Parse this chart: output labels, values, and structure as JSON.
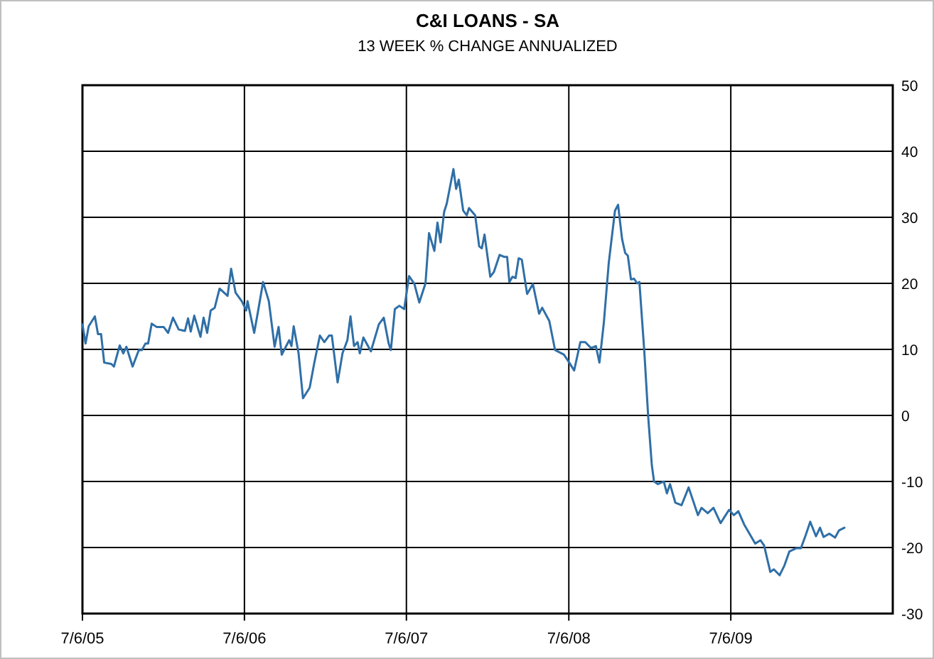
{
  "chart_data": {
    "type": "line",
    "title": "C&I LOANS - SA",
    "subtitle": "13 WEEK % CHANGE ANNUALIZED",
    "x": [
      "2005-07-06",
      "2005-07-13",
      "2005-07-20",
      "2005-08-03",
      "2005-08-10",
      "2005-08-17",
      "2005-08-24",
      "2005-09-09",
      "2005-09-15",
      "2005-09-28",
      "2005-10-06",
      "2005-10-13",
      "2005-10-27",
      "2005-11-10",
      "2005-11-17",
      "2005-11-25",
      "2005-12-01",
      "2005-12-09",
      "2005-12-20",
      "2006-01-05",
      "2006-01-15",
      "2006-01-26",
      "2006-02-08",
      "2006-02-22",
      "2006-03-01",
      "2006-03-07",
      "2006-03-15",
      "2006-03-29",
      "2006-04-05",
      "2006-04-13",
      "2006-04-21",
      "2006-04-30",
      "2006-05-11",
      "2006-05-29",
      "2006-06-06",
      "2006-06-16",
      "2006-06-30",
      "2006-07-10",
      "2006-07-13",
      "2006-07-28",
      "2006-08-06",
      "2006-08-17",
      "2006-08-30",
      "2006-09-12",
      "2006-09-21",
      "2006-09-28",
      "2006-10-15",
      "2006-10-20",
      "2006-10-25",
      "2006-11-05",
      "2006-11-15",
      "2006-11-30",
      "2006-12-10",
      "2006-12-23",
      "2007-01-02",
      "2007-01-13",
      "2007-01-19",
      "2007-02-01",
      "2007-02-12",
      "2007-02-23",
      "2007-03-02",
      "2007-03-10",
      "2007-03-18",
      "2007-03-23",
      "2007-03-31",
      "2007-04-17",
      "2007-05-05",
      "2007-05-16",
      "2007-05-27",
      "2007-06-01",
      "2007-06-10",
      "2007-06-20",
      "2007-07-01",
      "2007-07-12",
      "2007-07-24",
      "2007-08-04",
      "2007-08-18",
      "2007-08-26",
      "2007-09-07",
      "2007-09-14",
      "2007-09-21",
      "2007-09-29",
      "2007-10-05",
      "2007-10-20",
      "2007-10-26",
      "2007-11-01",
      "2007-11-11",
      "2007-11-19",
      "2007-11-24",
      "2007-12-08",
      "2007-12-17",
      "2007-12-23",
      "2007-12-29",
      "2008-01-11",
      "2008-01-19",
      "2008-02-01",
      "2008-02-12",
      "2008-02-18",
      "2008-02-23",
      "2008-03-01",
      "2008-03-08",
      "2008-03-15",
      "2008-03-22",
      "2008-04-03",
      "2008-04-16",
      "2008-04-30",
      "2008-05-07",
      "2008-05-23",
      "2008-06-05",
      "2008-06-25",
      "2008-07-07",
      "2008-07-18",
      "2008-08-01",
      "2008-08-12",
      "2008-08-25",
      "2008-09-05",
      "2008-09-13",
      "2008-09-23",
      "2008-10-04",
      "2008-10-18",
      "2008-10-25",
      "2008-11-03",
      "2008-11-10",
      "2008-11-16",
      "2008-11-23",
      "2008-11-30",
      "2008-12-07",
      "2008-12-12",
      "2008-12-23",
      "2009-01-01",
      "2009-01-09",
      "2009-01-14",
      "2009-01-23",
      "2009-02-05",
      "2009-02-12",
      "2009-02-19",
      "2009-03-03",
      "2009-03-17",
      "2009-04-02",
      "2009-04-23",
      "2009-05-01",
      "2009-05-15",
      "2009-05-28",
      "2009-06-13",
      "2009-07-02",
      "2009-07-13",
      "2009-07-23",
      "2009-08-05",
      "2009-08-30",
      "2009-09-11",
      "2009-09-19",
      "2009-10-03",
      "2009-10-11",
      "2009-10-24",
      "2009-11-04",
      "2009-11-15",
      "2009-12-01",
      "2009-12-11",
      "2009-12-22",
      "2010-01-01",
      "2010-01-14",
      "2010-01-23",
      "2010-01-31",
      "2010-02-13",
      "2010-02-26",
      "2010-03-07",
      "2010-03-19"
    ],
    "series": [
      {
        "color": "#2f6fa7",
        "values": [
          13.8,
          10.9,
          13.5,
          15.0,
          12.3,
          12.3,
          8.0,
          7.8,
          7.4,
          10.6,
          9.4,
          10.4,
          7.4,
          9.9,
          9.9,
          10.9,
          10.9,
          13.9,
          13.4,
          13.4,
          12.5,
          14.8,
          13.0,
          12.8,
          14.7,
          12.7,
          15.1,
          11.9,
          14.8,
          12.5,
          15.9,
          16.3,
          19.2,
          18.1,
          22.2,
          18.6,
          17.3,
          15.9,
          17.3,
          12.5,
          15.9,
          20.2,
          17.3,
          10.4,
          13.4,
          9.2,
          11.4,
          10.5,
          13.5,
          9.4,
          2.6,
          4.2,
          7.8,
          12.1,
          11.1,
          12.1,
          12.1,
          5.0,
          9.4,
          11.4,
          15.0,
          10.5,
          11.1,
          9.4,
          11.8,
          9.7,
          13.8,
          14.8,
          10.9,
          9.9,
          16.1,
          16.6,
          16.1,
          21.1,
          19.9,
          17.1,
          20.0,
          27.6,
          24.9,
          29.2,
          26.2,
          30.8,
          32.1,
          37.3,
          34.3,
          35.7,
          31.0,
          30.3,
          31.4,
          30.3,
          25.6,
          25.3,
          27.4,
          21.0,
          21.7,
          24.3,
          24.0,
          24.0,
          20.2,
          21.0,
          20.8,
          23.8,
          23.6,
          18.4,
          19.9,
          15.4,
          16.3,
          14.3,
          9.9,
          9.2,
          8.0,
          6.8,
          11.1,
          11.1,
          10.2,
          10.5,
          8.0,
          14.1,
          23.1,
          31.0,
          31.9,
          26.7,
          24.6,
          24.2,
          20.6,
          20.7,
          20.0,
          20.2,
          9.8,
          -0.3,
          -7.5,
          -10.0,
          -10.4,
          -10.0,
          -11.8,
          -10.4,
          -13.2,
          -13.6,
          -10.9,
          -15.1,
          -14.0,
          -14.8,
          -14.0,
          -16.3,
          -14.3,
          -15.1,
          -14.5,
          -16.5,
          -19.4,
          -18.9,
          -19.7,
          -23.7,
          -23.3,
          -24.2,
          -22.7,
          -20.6,
          -20.1,
          -20.1,
          -18.1,
          -16.1,
          -18.3,
          -17.0,
          -18.4,
          -17.9,
          -18.5,
          -17.4,
          -17.0
        ]
      }
    ],
    "xlim": [
      "2005-07-06",
      "2010-07-06"
    ],
    "xticks": [
      {
        "value": "2005-07-06",
        "label": "7/6/05"
      },
      {
        "value": "2006-07-06",
        "label": "7/6/06"
      },
      {
        "value": "2007-07-06",
        "label": "7/6/07"
      },
      {
        "value": "2008-07-06",
        "label": "7/6/08"
      },
      {
        "value": "2009-07-06",
        "label": "7/6/09"
      }
    ],
    "ylim": [
      -30,
      50
    ],
    "yticks": [
      -30,
      -20,
      -10,
      0,
      10,
      20,
      30,
      40,
      50
    ],
    "grid": true,
    "marker": "none",
    "line_style": "solid"
  }
}
